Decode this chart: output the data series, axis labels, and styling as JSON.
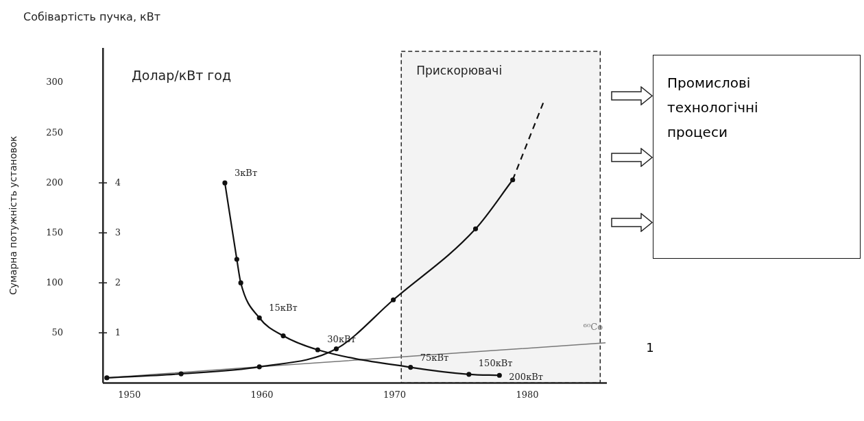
{
  "chart_data": {
    "type": "line",
    "title": "Собівартість пучка, кВт",
    "ylabel": "Сумарна потужність установок",
    "y2label": "Долар/кВт год",
    "xlim": [
      1948,
      1986
    ],
    "xticks": [
      1950,
      1960,
      1970,
      1980
    ],
    "ylim": [
      0,
      335
    ],
    "yticks": [
      50,
      100,
      150,
      200,
      250,
      300
    ],
    "y2lim": [
      0,
      6.7
    ],
    "y2ticks": [
      1,
      2,
      3,
      4
    ],
    "grid": false,
    "legend": false,
    "marker": "circle",
    "line_style": "solid",
    "series": [
      {
        "color": "#111111",
        "axis": "y2",
        "x": [
          1957.2,
          1958.1,
          1958.4,
          1959.8,
          1961.6,
          1964.2,
          1971.2,
          1975.6,
          1977.9
        ],
        "values": [
          4.0,
          2.47,
          2.0,
          1.3,
          0.94,
          0.66,
          0.31,
          0.17,
          0.15
        ]
      },
      {
        "color": "#111111",
        "x": [
          1948.3,
          1953.9,
          1959.8,
          1965.6,
          1969.9,
          1976.1,
          1978.9
        ],
        "values": [
          5,
          9,
          16,
          34,
          83,
          154,
          203
        ]
      },
      {
        "color": "#111111",
        "line_style": "dashed",
        "marker": "none",
        "x": [
          1978.9,
          1981.2
        ],
        "values": [
          203,
          280
        ]
      },
      {
        "name": "⁶⁰Co",
        "color": "#777777",
        "marker": "none",
        "x": [
          1948.3,
          1959.8,
          1985.9
        ],
        "values": [
          5,
          16,
          40
        ]
      }
    ],
    "bands": [
      {
        "axis": "x",
        "from": 1970.5,
        "to": 1985.5,
        "label": "Прискорювачі",
        "color": "#f3f3f3"
      }
    ],
    "annotations": [
      {
        "text": "3кВт",
        "x": 1957.2,
        "y": 200
      },
      {
        "text": "15кВт",
        "x": 1959.8,
        "y": 65
      },
      {
        "text": "30кВт",
        "x": 1964.2,
        "y": 33
      },
      {
        "text": "75кВт",
        "x": 1971.2,
        "y": 15
      },
      {
        "text": "150кВт",
        "x": 1975.6,
        "y": 9
      },
      {
        "text": "200кВт",
        "x": 1977.9,
        "y": 7
      },
      "Промислові технологічні процеси",
      "1"
    ]
  }
}
